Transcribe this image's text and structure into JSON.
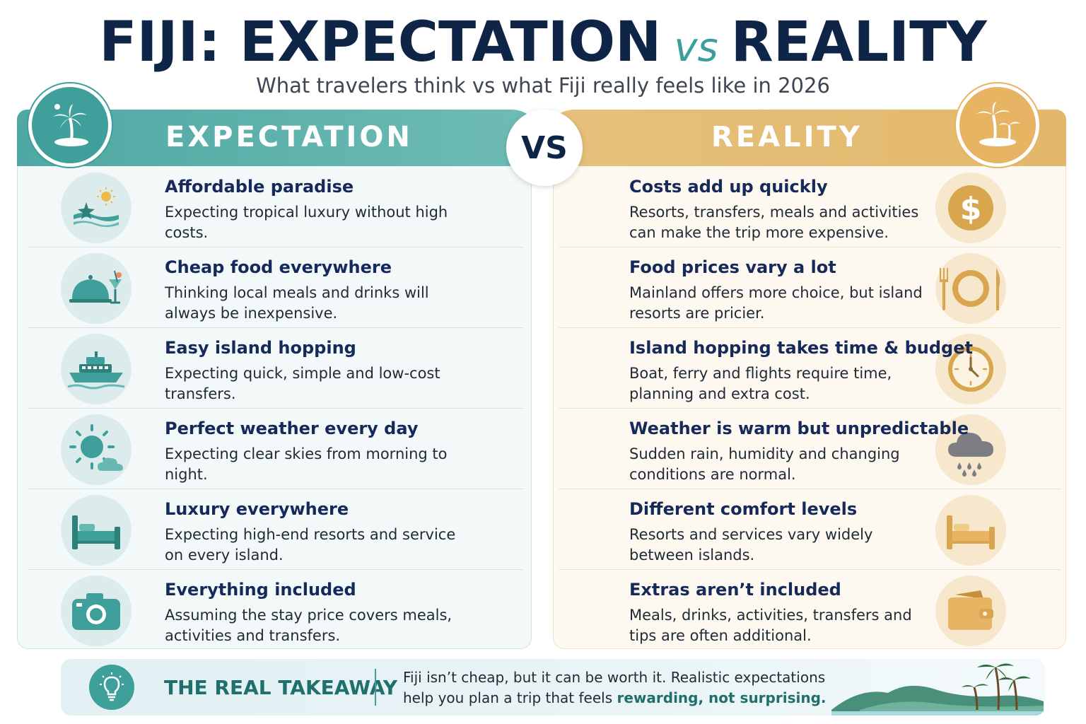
{
  "header": {
    "title_left": "FIJI: EXPECTATION",
    "title_vs": "vs",
    "title_right": "REALITY",
    "subtitle": "What travelers think vs what Fiji really feels like in 2026"
  },
  "expectation": {
    "label": "EXPECTATION",
    "badge_icon": "palm-island-icon",
    "items": [
      {
        "title": "Affordable paradise",
        "desc": "Expecting tropical luxury without high costs.",
        "icon": "starfish-sun-icon"
      },
      {
        "title": "Cheap food everywhere",
        "desc": "Thinking local meals and drinks will always be inexpensive.",
        "icon": "cloche-cocktail-icon"
      },
      {
        "title": "Easy island hopping",
        "desc": "Expecting quick, simple and low-cost transfers.",
        "icon": "ferry-icon"
      },
      {
        "title": "Perfect weather every day",
        "desc": "Expecting clear skies from morning to night.",
        "icon": "sun-cloud-icon"
      },
      {
        "title": "Luxury everywhere",
        "desc": "Expecting high-end resorts and service on every island.",
        "icon": "bed-icon"
      },
      {
        "title": "Everything included",
        "desc": "Assuming the stay price covers meals, activities and transfers.",
        "icon": "camera-icon"
      }
    ]
  },
  "vs_label": "VS",
  "reality": {
    "label": "REALITY",
    "badge_icon": "palm-island-icon",
    "items": [
      {
        "title": "Costs add up quickly",
        "desc": "Resorts, transfers, meals and activities can make the trip more expensive.",
        "icon": "dollar-icon"
      },
      {
        "title": "Food prices vary a lot",
        "desc": "Mainland offers more choice, but island resorts are pricier.",
        "icon": "plate-cutlery-icon"
      },
      {
        "title": "Island hopping takes time & budget",
        "desc": "Boat, ferry and flights require time, planning and extra cost.",
        "icon": "clock-icon"
      },
      {
        "title": "Weather is warm but unpredictable",
        "desc": "Sudden rain, humidity and changing conditions are normal.",
        "icon": "rain-cloud-icon"
      },
      {
        "title": "Different comfort levels",
        "desc": "Resorts and services vary widely between islands.",
        "icon": "bed-icon"
      },
      {
        "title": "Extras aren’t included",
        "desc": "Meals, drinks, activities, transfers and tips are often additional.",
        "icon": "wallet-icon"
      }
    ]
  },
  "takeaway": {
    "label": "THE REAL TAKEAWAY",
    "text_plain": "Fiji isn’t cheap, but it can be worth it. Realistic expectations help you plan a trip that feels ",
    "text_highlight": "rewarding, not surprising.",
    "icon": "lightbulb-icon"
  },
  "colors": {
    "navy": "#0f2548",
    "teal": "#3f9f9a",
    "gold": "#e6b463"
  }
}
